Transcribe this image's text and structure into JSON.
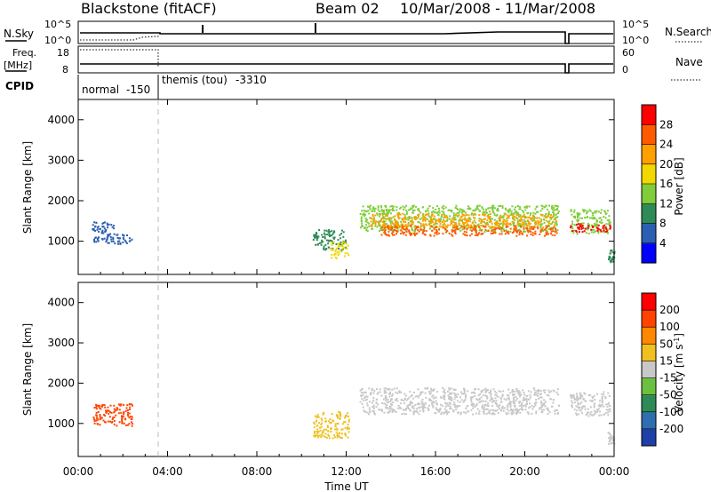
{
  "header": {
    "station": "Blackstone (fitACF)",
    "beam": "Beam 02",
    "dates": "10/Mar/2008 - 11/Mar/2008"
  },
  "status_panels": {
    "nsky_label": "N.Sky",
    "nsky_ticks": [
      "10^5",
      "10^0"
    ],
    "nsearch_label": "N.Search",
    "nsearch_ticks": [
      "10^5",
      "10^0"
    ],
    "freq_label": "Freq.",
    "freq_unit": "[MHz]",
    "freq_ticks": [
      "18",
      "8"
    ],
    "nave_label": "Nave",
    "nave_ticks": [
      "60",
      "0"
    ],
    "cpid_label": "CPID",
    "cpid_modes": [
      {
        "name": "normal",
        "id": "-150",
        "start_h": 0,
        "end_h": 3.5
      },
      {
        "name": "themis (tou)",
        "id": "-3310",
        "start_h": 3.5,
        "end_h": 24
      }
    ]
  },
  "chart_data": [
    {
      "type": "heatmap",
      "name": "power",
      "ylabel": "Slant Range [km]",
      "xlabel": "",
      "xlim": [
        0,
        24
      ],
      "ylim": [
        180,
        4500
      ],
      "yticks": [
        "4000",
        "3000",
        "2000",
        "1000"
      ],
      "grid": false,
      "colorbar": {
        "label": "Power [dB]",
        "ticks": [
          "28",
          "24",
          "20",
          "16",
          "12",
          "8",
          "4"
        ],
        "colors": [
          "#0000ff",
          "#2c5fb3",
          "#2e8b57",
          "#7fcd3a",
          "#f0d800",
          "#ffa000",
          "#ff5a00",
          "#ff0000"
        ]
      },
      "echo_regions": [
        {
          "t0": 0.6,
          "t1": 1.6,
          "r0": 1000,
          "r1": 1500,
          "level": 1
        },
        {
          "t0": 1.2,
          "t1": 2.4,
          "r0": 950,
          "r1": 1200,
          "level": 1
        },
        {
          "t0": 10.5,
          "t1": 12.0,
          "r0": 800,
          "r1": 1300,
          "level": 2
        },
        {
          "t0": 11.3,
          "t1": 12.1,
          "r0": 600,
          "r1": 1000,
          "level": 4
        },
        {
          "t0": 12.6,
          "t1": 21.5,
          "r0": 1250,
          "r1": 1900,
          "level": 3
        },
        {
          "t0": 13.0,
          "t1": 21.4,
          "r0": 1350,
          "r1": 1700,
          "level": 5
        },
        {
          "t0": 13.5,
          "t1": 21.4,
          "r0": 1150,
          "r1": 1400,
          "level": 6
        },
        {
          "t0": 22.0,
          "t1": 23.8,
          "r0": 1200,
          "r1": 1800,
          "level": 3
        },
        {
          "t0": 22.0,
          "t1": 23.8,
          "r0": 1250,
          "r1": 1450,
          "level": 7
        },
        {
          "t0": 23.7,
          "t1": 24.0,
          "r0": 500,
          "r1": 800,
          "level": 2
        }
      ]
    },
    {
      "type": "heatmap",
      "name": "velocity",
      "ylabel": "Slant Range [km]",
      "xlabel": "Time UT",
      "xlim": [
        0,
        24
      ],
      "ylim": [
        180,
        4500
      ],
      "xticks": [
        "00:00",
        "04:00",
        "08:00",
        "12:00",
        "16:00",
        "20:00",
        "00:00"
      ],
      "yticks": [
        "4000",
        "3000",
        "2000",
        "1000"
      ],
      "grid": false,
      "colorbar": {
        "label": "Velocity [m s^-1]",
        "ticks": [
          "200",
          "100",
          "50",
          "15",
          "-15",
          "-50",
          "-100",
          "-200"
        ],
        "colors": [
          "#1e3fa8",
          "#2f6fb0",
          "#2e8b57",
          "#6cc040",
          "#c8c8c8",
          "#f0c020",
          "#ff8800",
          "#ff4400",
          "#ff0000"
        ]
      },
      "echo_regions": [
        {
          "t0": 0.6,
          "t1": 2.4,
          "r0": 950,
          "r1": 1500,
          "level": 7
        },
        {
          "t0": 10.5,
          "t1": 12.1,
          "r0": 650,
          "r1": 1300,
          "level": 5
        },
        {
          "t0": 12.6,
          "t1": 21.5,
          "r0": 1250,
          "r1": 1900,
          "level": 4
        },
        {
          "t0": 22.0,
          "t1": 23.8,
          "r0": 1200,
          "r1": 1800,
          "level": 4
        },
        {
          "t0": 23.7,
          "t1": 24.0,
          "r0": 500,
          "r1": 800,
          "level": 4
        }
      ]
    }
  ]
}
